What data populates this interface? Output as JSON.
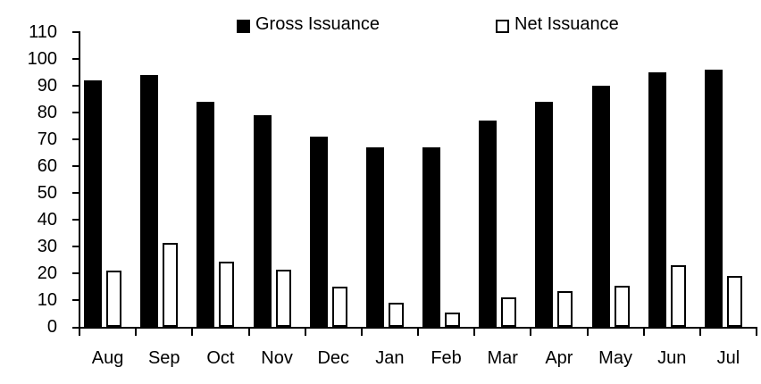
{
  "legend": {
    "entries": [
      {
        "label": "Gross Issuance",
        "swatch": "black-filled-square"
      },
      {
        "label": "Net Issuance",
        "swatch": "white-outlined-square"
      }
    ]
  },
  "colors": {
    "gross_fill": "#000000",
    "net_fill": "#ffffff",
    "net_outline": "#000000",
    "axis": "#000000",
    "text": "#000000",
    "background": "#ffffff"
  },
  "chart_data": {
    "type": "bar",
    "title": "",
    "xlabel": "",
    "ylabel": "",
    "categories": [
      "Aug",
      "Sep",
      "Oct",
      "Nov",
      "Dec",
      "Jan",
      "Feb",
      "Mar",
      "Apr",
      "May",
      "Jun",
      "Jul"
    ],
    "series": [
      {
        "name": "Gross Issuance",
        "values": [
          92,
          94,
          84,
          79,
          71,
          67,
          67,
          77,
          84,
          90,
          95,
          96
        ]
      },
      {
        "name": "Net Issuance",
        "values": [
          21,
          31.5,
          24.5,
          21.5,
          15,
          9,
          5.5,
          11,
          13.5,
          15.5,
          23,
          19
        ]
      }
    ],
    "ylim": [
      0,
      110
    ],
    "ytick_step": 10,
    "ytick_labels": [
      "0",
      "10",
      "20",
      "30",
      "40",
      "50",
      "60",
      "70",
      "80",
      "90",
      "100",
      "110"
    ],
    "grid": false,
    "legend_position": "top-center"
  }
}
